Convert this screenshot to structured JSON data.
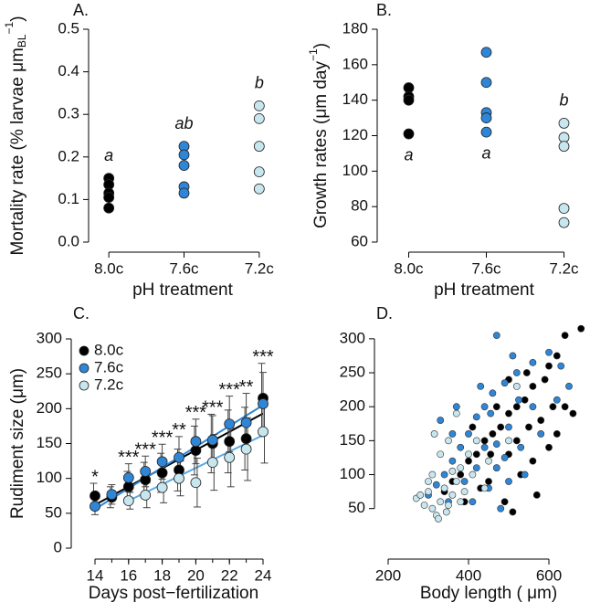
{
  "chart_data": [
    {
      "type": "strip",
      "panel_label": "A.",
      "ylabel": {
        "text": "Mortality rate (% larvae  μm",
        "sub": "BL",
        "sup": "−1",
        "end": ")"
      },
      "xlabel": "pH treatment",
      "categories": [
        "8.0c",
        "7.6c",
        "7.2c"
      ],
      "colors": [
        "#000000",
        "#2f86d6",
        "#c8e6ee"
      ],
      "values": [
        [
          0.15,
          0.135,
          0.115,
          0.105,
          0.08
        ],
        [
          0.225,
          0.205,
          0.18,
          0.13,
          0.115
        ],
        [
          0.32,
          0.29,
          0.225,
          0.165,
          0.125
        ]
      ],
      "group_labels": [
        "a",
        "ab",
        "b"
      ],
      "ylim": [
        0,
        0.5
      ],
      "yticks": [
        {
          "value": 0,
          "label": "0.0"
        },
        0.1,
        0.2,
        0.3,
        0.4,
        0.5
      ]
    },
    {
      "type": "strip",
      "panel_label": "B.",
      "ylabel": {
        "text": "Growth rates (μm day",
        "sup": "−1",
        "end": ")"
      },
      "xlabel": "pH treatment",
      "categories": [
        "8.0c",
        "7.6c",
        "7.2c"
      ],
      "colors": [
        "#000000",
        "#2f86d6",
        "#c8e6ee"
      ],
      "values": [
        [
          147,
          142,
          140,
          121
        ],
        [
          167,
          150,
          133,
          130,
          122
        ],
        [
          127,
          119,
          114,
          79,
          71
        ]
      ],
      "group_labels": [
        "a",
        "a",
        "b"
      ],
      "ylim": [
        60,
        180
      ],
      "yticks": [
        60,
        80,
        100,
        120,
        140,
        160,
        180
      ]
    },
    {
      "type": "line",
      "panel_label": "C.",
      "ylabel": "Rudiment size (μm)",
      "xlabel": "Days post−fertilization",
      "x": [
        14,
        15,
        16,
        17,
        18,
        19,
        20,
        21,
        22,
        23,
        24
      ],
      "series": [
        {
          "name": "8.0c",
          "color": "#000000",
          "values": [
            75,
            73,
            88,
            98,
            108,
            112,
            140,
            150,
            153,
            157,
            215
          ],
          "errors": [
            18,
            15,
            22,
            25,
            28,
            30,
            35,
            42,
            45,
            45,
            50
          ],
          "trend": {
            "x": [
              14,
              24
            ],
            "values": [
              62,
              193
            ]
          }
        },
        {
          "name": "7.6c",
          "color": "#2f86d6",
          "values": [
            60,
            77,
            101,
            110,
            124,
            130,
            153,
            155,
            178,
            180,
            207
          ],
          "errors": [
            12,
            14,
            20,
            22,
            25,
            30,
            32,
            35,
            40,
            42,
            45
          ],
          "trend": {
            "x": [
              14,
              24
            ],
            "values": [
              56,
              205
            ]
          }
        },
        {
          "name": "7.2c",
          "color": "#c8e6ee",
          "values": [
            null,
            null,
            68,
            76,
            87,
            100,
            94,
            123,
            130,
            142,
            167
          ],
          "errors": [
            null,
            null,
            12,
            18,
            22,
            25,
            35,
            40,
            42,
            45,
            45
          ],
          "trend": {
            "x": [
              16,
              24
            ],
            "values": [
              68,
              162
            ]
          }
        }
      ],
      "significance": [
        "*",
        null,
        "***",
        "***",
        "***",
        "**",
        "***",
        "***",
        "***",
        "**",
        "***"
      ],
      "xlim": [
        14,
        24
      ],
      "xticks": [
        14,
        16,
        18,
        20,
        22,
        24
      ],
      "ylim": [
        0,
        300
      ],
      "yticks": [
        0,
        50,
        100,
        150,
        200,
        250,
        300
      ],
      "legend": "top-left"
    },
    {
      "type": "scatter",
      "panel_label": "D.",
      "xlabel": "Body length ( μm)",
      "series": [
        {
          "name": "8.0c",
          "color": "#000000",
          "x": [
            680,
            640,
            620,
            600,
            590,
            560,
            540,
            520,
            500,
            480,
            460,
            440,
            420,
            400,
            380,
            360,
            340,
            500,
            520,
            550,
            580,
            610,
            470,
            450,
            430,
            490,
            510,
            560,
            600,
            640,
            660,
            530,
            470,
            410,
            390,
            570,
            620,
            545,
            500,
            455
          ],
          "values": [
            315,
            305,
            275,
            260,
            240,
            230,
            210,
            200,
            190,
            170,
            160,
            150,
            130,
            120,
            100,
            90,
            75,
            130,
            150,
            170,
            180,
            200,
            110,
            90,
            80,
            60,
            45,
            120,
            140,
            200,
            190,
            100,
            200,
            170,
            60,
            70,
            160,
            250,
            240,
            130
          ]
        },
        {
          "name": "7.6c",
          "color": "#2f86d6",
          "x": [
            470,
            650,
            630,
            600,
            560,
            520,
            490,
            460,
            440,
            420,
            400,
            380,
            360,
            340,
            320,
            300,
            330,
            500,
            530,
            470,
            450,
            500,
            560,
            420,
            390,
            350,
            480,
            540,
            580,
            510,
            430,
            370,
            470,
            410,
            620,
            455,
            525,
            490,
            440,
            360
          ],
          "values": [
            305,
            230,
            260,
            280,
            265,
            250,
            235,
            220,
            200,
            185,
            160,
            140,
            120,
            100,
            85,
            70,
            180,
            170,
            140,
            110,
            80,
            90,
            200,
            110,
            90,
            60,
            50,
            100,
            160,
            275,
            230,
            200,
            145,
            60,
            210,
            190,
            210,
            125,
            140,
            160
          ]
        },
        {
          "name": "7.2c",
          "color": "#c8e6ee",
          "x": [
            270,
            290,
            300,
            310,
            320,
            330,
            340,
            350,
            360,
            370,
            380,
            300,
            310,
            400,
            420,
            350,
            330,
            450,
            390,
            280,
            325,
            345,
            410,
            440,
            360,
            520,
            370,
            500,
            315,
            380
          ],
          "values": [
            65,
            55,
            75,
            50,
            40,
            60,
            80,
            55,
            70,
            90,
            110,
            90,
            100,
            130,
            150,
            150,
            130,
            120,
            75,
            70,
            35,
            45,
            100,
            80,
            105,
            230,
            190,
            150,
            160,
            60
          ]
        }
      ],
      "xlim": [
        200,
        700
      ],
      "xticks": [
        200,
        400,
        600
      ],
      "ylim": [
        20,
        320
      ],
      "yticks": [
        50,
        100,
        150,
        200,
        250,
        300
      ]
    }
  ]
}
